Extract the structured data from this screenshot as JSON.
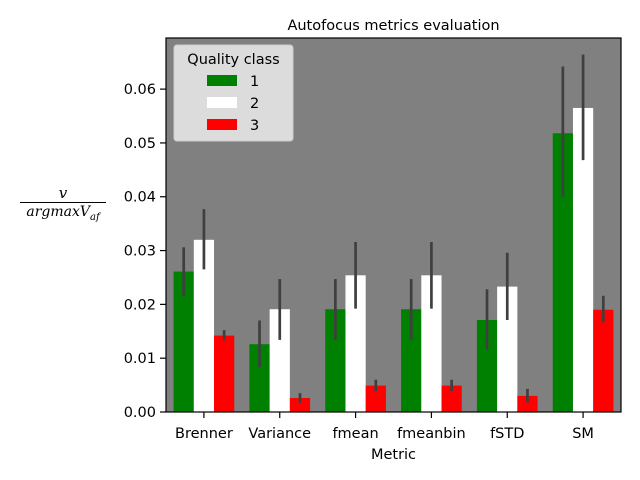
{
  "chart_data": {
    "type": "bar",
    "title": "Autofocus metrics evaluation",
    "xlabel": "Metric",
    "ylabel": {
      "numerator": "v",
      "denominator_main": "argmaxV",
      "denominator_sub": "af"
    },
    "ylim": [
      0,
      0.0695
    ],
    "yticks": [
      "0.00",
      "0.01",
      "0.02",
      "0.03",
      "0.04",
      "0.05",
      "0.06"
    ],
    "ytick_values": [
      0,
      0.01,
      0.02,
      0.03,
      0.04,
      0.05,
      0.06
    ],
    "categories": [
      "Brenner",
      "Variance",
      "fmean",
      "fmeanbin",
      "fSTD",
      "SM"
    ],
    "legend": {
      "title": "Quality class",
      "placement": "upper-left"
    },
    "plot_background": "#808080",
    "series": [
      {
        "name": "1",
        "color": "#008000",
        "values": [
          0.0261,
          0.0126,
          0.0191,
          0.0191,
          0.0171,
          0.0518
        ],
        "ci_low": [
          0.0215,
          0.0083,
          0.0134,
          0.0134,
          0.0116,
          0.04
        ],
        "ci_high": [
          0.0306,
          0.017,
          0.0247,
          0.0247,
          0.0228,
          0.0642
        ]
      },
      {
        "name": "2",
        "color": "#ffffff",
        "values": [
          0.032,
          0.0191,
          0.0254,
          0.0254,
          0.0233,
          0.0565
        ],
        "ci_low": [
          0.0265,
          0.0134,
          0.0192,
          0.0192,
          0.0171,
          0.0468
        ],
        "ci_high": [
          0.0377,
          0.0247,
          0.0316,
          0.0316,
          0.0296,
          0.0664
        ]
      },
      {
        "name": "3",
        "color": "#ff0000",
        "values": [
          0.0142,
          0.0026,
          0.0049,
          0.0049,
          0.003,
          0.019
        ],
        "ci_low": [
          0.0133,
          0.0017,
          0.0039,
          0.0039,
          0.0018,
          0.0167
        ],
        "ci_high": [
          0.0152,
          0.0035,
          0.006,
          0.006,
          0.0043,
          0.0216
        ]
      }
    ]
  }
}
